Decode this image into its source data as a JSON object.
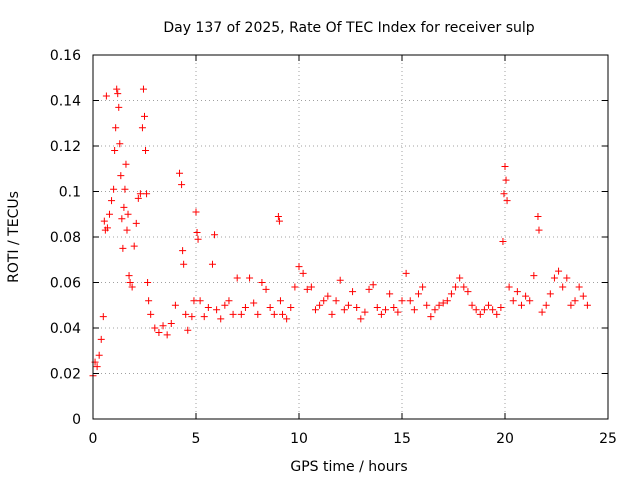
{
  "chart_data": {
    "type": "scatter",
    "title": "Day 137 of 2025, Rate Of TEC Index for receiver sulp",
    "xlabel": "GPS time / hours",
    "ylabel": "ROTI / TECUs",
    "xlim": [
      0,
      25
    ],
    "ylim": [
      0,
      0.16
    ],
    "x_ticks": [
      0,
      5,
      10,
      15,
      20,
      25
    ],
    "y_ticks": [
      0,
      0.02,
      0.04,
      0.06,
      0.08,
      0.1,
      0.12,
      0.14,
      0.16
    ],
    "x_tick_labels": [
      "0",
      "5",
      "10",
      "15",
      "20",
      "25"
    ],
    "y_tick_labels": [
      "0",
      "0.02",
      "0.04",
      "0.06",
      "0.08",
      "0.1",
      "0.12",
      "0.14",
      "0.16"
    ],
    "grid": true,
    "marker": "plus",
    "series": [
      {
        "name": "ROTI",
        "color": "#ff0000",
        "x": [
          0.0,
          0.1,
          0.2,
          0.3,
          0.4,
          0.5,
          0.55,
          0.6,
          0.65,
          0.7,
          0.8,
          0.9,
          1.0,
          1.05,
          1.1,
          1.15,
          1.2,
          1.25,
          1.3,
          1.35,
          1.4,
          1.45,
          1.5,
          1.55,
          1.6,
          1.65,
          1.7,
          1.75,
          1.8,
          1.9,
          2.0,
          2.1,
          2.2,
          2.3,
          2.4,
          2.45,
          2.5,
          2.55,
          2.6,
          2.65,
          2.7,
          2.8,
          3.0,
          3.2,
          3.4,
          3.6,
          3.8,
          4.0,
          4.2,
          4.3,
          4.35,
          4.4,
          4.5,
          4.6,
          4.8,
          4.9,
          5.0,
          5.05,
          5.1,
          5.2,
          5.4,
          5.6,
          5.8,
          5.9,
          6.0,
          6.2,
          6.4,
          6.6,
          6.8,
          7.0,
          7.2,
          7.4,
          7.6,
          7.8,
          8.0,
          8.2,
          8.4,
          8.6,
          8.8,
          9.0,
          9.05,
          9.1,
          9.2,
          9.4,
          9.6,
          9.8,
          10.0,
          10.2,
          10.4,
          10.6,
          10.8,
          11.0,
          11.2,
          11.4,
          11.6,
          11.8,
          12.0,
          12.2,
          12.4,
          12.6,
          12.8,
          13.0,
          13.2,
          13.4,
          13.6,
          13.8,
          14.0,
          14.2,
          14.4,
          14.6,
          14.8,
          15.0,
          15.2,
          15.4,
          15.6,
          15.8,
          16.0,
          16.2,
          16.4,
          16.6,
          16.8,
          17.0,
          17.2,
          17.4,
          17.6,
          17.8,
          18.0,
          18.2,
          18.4,
          18.6,
          18.8,
          19.0,
          19.2,
          19.4,
          19.6,
          19.8,
          19.9,
          19.95,
          20.0,
          20.05,
          20.1,
          20.2,
          20.4,
          20.6,
          20.8,
          21.0,
          21.2,
          21.4,
          21.6,
          21.65,
          21.8,
          22.0,
          22.2,
          22.4,
          22.6,
          22.8,
          23.0,
          23.2,
          23.4,
          23.6,
          23.8,
          24.0
        ],
        "y": [
          0.019,
          0.025,
          0.023,
          0.028,
          0.035,
          0.045,
          0.087,
          0.083,
          0.142,
          0.084,
          0.09,
          0.096,
          0.101,
          0.118,
          0.128,
          0.145,
          0.143,
          0.137,
          0.121,
          0.107,
          0.088,
          0.075,
          0.093,
          0.101,
          0.112,
          0.083,
          0.09,
          0.063,
          0.06,
          0.058,
          0.076,
          0.086,
          0.097,
          0.099,
          0.128,
          0.145,
          0.133,
          0.118,
          0.099,
          0.06,
          0.052,
          0.046,
          0.04,
          0.038,
          0.041,
          0.037,
          0.042,
          0.05,
          0.108,
          0.103,
          0.074,
          0.068,
          0.046,
          0.039,
          0.045,
          0.052,
          0.091,
          0.082,
          0.079,
          0.052,
          0.045,
          0.049,
          0.068,
          0.081,
          0.048,
          0.044,
          0.05,
          0.052,
          0.046,
          0.062,
          0.046,
          0.049,
          0.062,
          0.051,
          0.046,
          0.06,
          0.057,
          0.049,
          0.046,
          0.089,
          0.087,
          0.052,
          0.046,
          0.044,
          0.049,
          0.058,
          0.067,
          0.064,
          0.057,
          0.058,
          0.048,
          0.05,
          0.052,
          0.054,
          0.046,
          0.052,
          0.061,
          0.048,
          0.05,
          0.056,
          0.049,
          0.044,
          0.047,
          0.057,
          0.059,
          0.049,
          0.046,
          0.048,
          0.055,
          0.049,
          0.047,
          0.052,
          0.064,
          0.052,
          0.048,
          0.055,
          0.058,
          0.05,
          0.045,
          0.048,
          0.05,
          0.051,
          0.052,
          0.055,
          0.058,
          0.062,
          0.058,
          0.056,
          0.05,
          0.048,
          0.046,
          0.048,
          0.05,
          0.048,
          0.046,
          0.049,
          0.078,
          0.099,
          0.111,
          0.105,
          0.096,
          0.058,
          0.052,
          0.056,
          0.05,
          0.054,
          0.052,
          0.063,
          0.089,
          0.083,
          0.047,
          0.05,
          0.055,
          0.062,
          0.065,
          0.058,
          0.062,
          0.05,
          0.052,
          0.058,
          0.054,
          0.05
        ]
      }
    ]
  }
}
